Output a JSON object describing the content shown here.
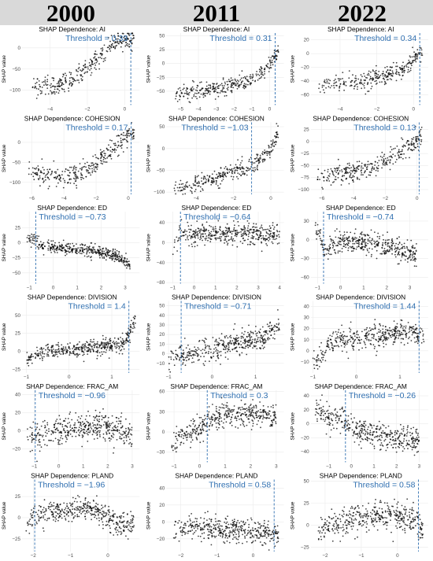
{
  "header": {
    "years": [
      "2000",
      "2011",
      "2022"
    ]
  },
  "colors": {
    "header_bg": "#d9d9d9",
    "point": "#000000",
    "threshold": "#2f6fb0",
    "grid": "#ebebeb"
  },
  "chart_data": [
    {
      "type": "scatter",
      "row": 0,
      "col": 0,
      "title": "SHAP Dependence: AI",
      "ylabel": "SHAP value",
      "threshold_label": "Threshold = 0.33",
      "threshold": 0.33,
      "xlim": [
        -5.5,
        0.8
      ],
      "ylim": [
        -135,
        35
      ],
      "xticks": [
        -4,
        -2,
        0
      ],
      "yticks": [
        -100,
        -50,
        0
      ],
      "trend": [
        [
          -5.0,
          -95
        ],
        [
          -4.3,
          -92
        ],
        [
          -3.5,
          -85
        ],
        [
          -2.8,
          -75
        ],
        [
          -2.3,
          -60
        ],
        [
          -1.8,
          -40
        ],
        [
          -1.3,
          -20
        ],
        [
          -0.8,
          5
        ],
        [
          -0.3,
          12
        ],
        [
          0.0,
          18
        ],
        [
          0.3,
          20
        ],
        [
          0.5,
          22
        ]
      ],
      "spread": 12,
      "n": 320
    },
    {
      "type": "scatter",
      "row": 0,
      "col": 1,
      "title": "SHAP Dependence: AI",
      "ylabel": "SHAP value",
      "threshold_label": "Threshold = 0.31",
      "threshold": 0.31,
      "xlim": [
        -5.8,
        0.8
      ],
      "ylim": [
        -75,
        55
      ],
      "xticks": [
        -5,
        -4,
        -3,
        -2,
        -1,
        0
      ],
      "yticks": [
        -50,
        -25,
        0,
        25,
        50
      ],
      "trend": [
        [
          -5.3,
          -55
        ],
        [
          -4.5,
          -50
        ],
        [
          -3.8,
          -48
        ],
        [
          -3.0,
          -45
        ],
        [
          -2.3,
          -40
        ],
        [
          -1.6,
          -35
        ],
        [
          -1.0,
          -28
        ],
        [
          -0.5,
          -18
        ],
        [
          -0.1,
          -5
        ],
        [
          0.2,
          10
        ],
        [
          0.5,
          25
        ]
      ],
      "spread": 7,
      "n": 320
    },
    {
      "type": "scatter",
      "row": 0,
      "col": 2,
      "title": "SHAP Dependence: AI",
      "ylabel": "SHAP value",
      "threshold_label": "Threshold = 0.34",
      "threshold": 0.34,
      "xlim": [
        -5.6,
        0.8
      ],
      "ylim": [
        -75,
        30
      ],
      "xticks": [
        -4,
        -2,
        0
      ],
      "yticks": [
        -60,
        -40,
        -20,
        0,
        20
      ],
      "trend": [
        [
          -5.2,
          -45
        ],
        [
          -4.5,
          -45
        ],
        [
          -3.8,
          -44
        ],
        [
          -3.0,
          -42
        ],
        [
          -2.3,
          -38
        ],
        [
          -1.6,
          -33
        ],
        [
          -1.0,
          -28
        ],
        [
          -0.5,
          -22
        ],
        [
          0.0,
          -10
        ],
        [
          0.3,
          0
        ],
        [
          0.5,
          5
        ]
      ],
      "spread": 6,
      "n": 300
    },
    {
      "type": "scatter",
      "row": 1,
      "col": 0,
      "title": "SHAP Dependence: COHESION",
      "ylabel": "SHAP value",
      "threshold_label": "Threshold = 0.17",
      "threshold": 0.17,
      "xlim": [
        -6.6,
        0.7
      ],
      "ylim": [
        -130,
        50
      ],
      "xticks": [
        -6,
        -4,
        -2,
        0
      ],
      "yticks": [
        -100,
        -50,
        0
      ],
      "trend": [
        [
          -6.2,
          -75
        ],
        [
          -5.2,
          -85
        ],
        [
          -4.2,
          -90
        ],
        [
          -3.2,
          -80
        ],
        [
          -2.2,
          -60
        ],
        [
          -1.6,
          -40
        ],
        [
          -1.0,
          -20
        ],
        [
          -0.5,
          0
        ],
        [
          -0.1,
          15
        ],
        [
          0.2,
          20
        ],
        [
          0.4,
          25
        ]
      ],
      "spread": 12,
      "n": 320
    },
    {
      "type": "scatter",
      "row": 1,
      "col": 1,
      "title": "SHAP Dependence: COHESION",
      "ylabel": "SHAP value",
      "threshold_label": "Threshold = −1.03",
      "threshold": -1.03,
      "xlim": [
        -5.6,
        0.7
      ],
      "ylim": [
        -105,
        60
      ],
      "xticks": [
        -4,
        -2,
        0
      ],
      "yticks": [
        -100,
        -50,
        0,
        50
      ],
      "trend": [
        [
          -5.2,
          -90
        ],
        [
          -4.3,
          -85
        ],
        [
          -3.5,
          -75
        ],
        [
          -2.7,
          -65
        ],
        [
          -2.0,
          -55
        ],
        [
          -1.3,
          -45
        ],
        [
          -0.8,
          -35
        ],
        [
          -0.4,
          -20
        ],
        [
          0.0,
          0
        ],
        [
          0.2,
          20
        ],
        [
          0.4,
          35
        ]
      ],
      "spread": 10,
      "n": 320
    },
    {
      "type": "scatter",
      "row": 1,
      "col": 2,
      "title": "SHAP Dependence: COHESION",
      "ylabel": "SHAP value",
      "threshold_label": "Threshold = 0.13",
      "threshold": 0.13,
      "xlim": [
        -6.7,
        0.7
      ],
      "ylim": [
        -110,
        40
      ],
      "xticks": [
        -6,
        -4,
        -2,
        0
      ],
      "yticks": [
        -100,
        -75,
        -50,
        -25,
        0,
        25
      ],
      "trend": [
        [
          -6.3,
          -80
        ],
        [
          -5.4,
          -70
        ],
        [
          -4.6,
          -65
        ],
        [
          -3.8,
          -60
        ],
        [
          -3.0,
          -55
        ],
        [
          -2.2,
          -45
        ],
        [
          -1.5,
          -30
        ],
        [
          -0.9,
          -18
        ],
        [
          -0.4,
          -8
        ],
        [
          0.0,
          5
        ],
        [
          0.3,
          10
        ]
      ],
      "spread": 10,
      "n": 320
    },
    {
      "type": "scatter",
      "row": 2,
      "col": 0,
      "title": "SHAP Dependence: ED",
      "ylabel": "SHAP value",
      "threshold_label": "Threshold = −0.73",
      "threshold": -0.73,
      "xlim": [
        -1.3,
        3.6
      ],
      "ylim": [
        -68,
        52
      ],
      "xticks": [
        -1,
        0,
        1,
        2,
        3
      ],
      "yticks": [
        -50,
        -25,
        0,
        25
      ],
      "trend": [
        [
          -1.1,
          8
        ],
        [
          -0.8,
          6
        ],
        [
          -0.5,
          -5
        ],
        [
          0.0,
          -8
        ],
        [
          0.7,
          -10
        ],
        [
          1.4,
          -12
        ],
        [
          2.0,
          -16
        ],
        [
          2.6,
          -22
        ],
        [
          3.2,
          -35
        ]
      ],
      "spread": 5,
      "n": 420
    },
    {
      "type": "scatter",
      "row": 2,
      "col": 1,
      "title": "SHAP Dependence: ED",
      "ylabel": "SHAP value",
      "threshold_label": "Threshold = −0.64",
      "threshold": -0.64,
      "xlim": [
        -1.3,
        4.2
      ],
      "ylim": [
        -82,
        62
      ],
      "xticks": [
        -1,
        0,
        1,
        2,
        3,
        4
      ],
      "yticks": [
        -80,
        -40,
        0,
        40
      ],
      "trend": [
        [
          -1.0,
          -15
        ],
        [
          -0.8,
          5
        ],
        [
          -0.6,
          20
        ],
        [
          -0.3,
          15
        ],
        [
          0.5,
          18
        ],
        [
          1.5,
          20
        ],
        [
          2.5,
          18
        ],
        [
          3.5,
          15
        ],
        [
          4.0,
          15
        ]
      ],
      "spread": 10,
      "n": 420
    },
    {
      "type": "scatter",
      "row": 2,
      "col": 2,
      "title": "SHAP Dependence: ED",
      "ylabel": "SHAP value",
      "threshold_label": "Threshold = −0.74",
      "threshold": -0.74,
      "xlim": [
        -1.3,
        3.8
      ],
      "ylim": [
        -70,
        45
      ],
      "xticks": [
        -1,
        0,
        1,
        2,
        3
      ],
      "yticks": [
        -60,
        -30,
        0,
        30
      ],
      "trend": [
        [
          -1.1,
          15
        ],
        [
          -0.9,
          10
        ],
        [
          -0.7,
          -20
        ],
        [
          -0.4,
          -5
        ],
        [
          0.3,
          -2
        ],
        [
          1.0,
          -5
        ],
        [
          1.8,
          -8
        ],
        [
          2.5,
          -15
        ],
        [
          3.3,
          -25
        ]
      ],
      "spread": 9,
      "n": 420
    },
    {
      "type": "scatter",
      "row": 3,
      "col": 0,
      "title": "SHAP Dependence: DIVISION",
      "ylabel": "SHAP value",
      "threshold_label": "Threshold = 1.4",
      "threshold": 1.4,
      "xlim": [
        -1.1,
        1.65
      ],
      "ylim": [
        -30,
        70
      ],
      "xticks": [
        -1,
        0,
        1
      ],
      "yticks": [
        -25,
        0,
        25,
        50
      ],
      "trend": [
        [
          -1.0,
          -15
        ],
        [
          -0.8,
          -5
        ],
        [
          -0.4,
          0
        ],
        [
          0.0,
          2
        ],
        [
          0.5,
          5
        ],
        [
          1.0,
          8
        ],
        [
          1.3,
          12
        ],
        [
          1.45,
          30
        ],
        [
          1.55,
          45
        ]
      ],
      "spread": 5,
      "n": 420
    },
    {
      "type": "scatter",
      "row": 3,
      "col": 1,
      "title": "SHAP Dependence: DIVISION",
      "ylabel": "SHAP value",
      "threshold_label": "Threshold = −0.71",
      "threshold": -0.71,
      "xlim": [
        -1.05,
        1.65
      ],
      "ylim": [
        -20,
        55
      ],
      "xticks": [
        -1,
        0,
        1
      ],
      "yticks": [
        -10,
        0,
        10,
        20,
        30,
        40,
        50
      ],
      "trend": [
        [
          -1.0,
          -5
        ],
        [
          -0.7,
          0
        ],
        [
          -0.3,
          3
        ],
        [
          0.0,
          5
        ],
        [
          0.3,
          8
        ],
        [
          0.7,
          12
        ],
        [
          1.0,
          15
        ],
        [
          1.3,
          20
        ],
        [
          1.55,
          30
        ]
      ],
      "spread": 6,
      "n": 420
    },
    {
      "type": "scatter",
      "row": 3,
      "col": 2,
      "title": "SHAP Dependence: DIVISION",
      "ylabel": "SHAP value",
      "threshold_label": "Threshold = 1.44",
      "threshold": 1.44,
      "xlim": [
        -1.05,
        1.65
      ],
      "ylim": [
        -20,
        45
      ],
      "xticks": [
        -1,
        0,
        1
      ],
      "yticks": [
        -10,
        0,
        10,
        20,
        30,
        40
      ],
      "trend": [
        [
          -1.0,
          -12
        ],
        [
          -0.85,
          -8
        ],
        [
          -0.6,
          8
        ],
        [
          -0.2,
          10
        ],
        [
          0.3,
          12
        ],
        [
          0.8,
          15
        ],
        [
          1.2,
          18
        ],
        [
          1.45,
          15
        ],
        [
          1.55,
          10
        ]
      ],
      "spread": 5,
      "n": 420
    },
    {
      "type": "scatter",
      "row": 4,
      "col": 0,
      "title": "SHAP Dependence: FRAC_AM",
      "ylabel": "SHAP value",
      "threshold_label": "Threshold = −0.96",
      "threshold": -0.96,
      "xlim": [
        -1.5,
        3.3
      ],
      "ylim": [
        -35,
        45
      ],
      "xticks": [
        -1,
        0,
        1,
        2,
        3
      ],
      "yticks": [
        -20,
        0,
        20,
        40
      ],
      "trend": [
        [
          -1.3,
          -8
        ],
        [
          -1.0,
          -5
        ],
        [
          -0.5,
          -5
        ],
        [
          0.0,
          0
        ],
        [
          0.5,
          2
        ],
        [
          1.0,
          5
        ],
        [
          1.5,
          5
        ],
        [
          2.0,
          5
        ],
        [
          2.5,
          0
        ],
        [
          3.0,
          -5
        ]
      ],
      "spread": 8,
      "n": 420
    },
    {
      "type": "scatter",
      "row": 4,
      "col": 1,
      "title": "SHAP Dependence: FRAC_AM",
      "ylabel": "SHAP value",
      "threshold_label": "Threshold = 0.3",
      "threshold": 0.3,
      "xlim": [
        -1.3,
        3.3
      ],
      "ylim": [
        -45,
        62
      ],
      "xticks": [
        -1,
        0,
        1,
        2,
        3
      ],
      "yticks": [
        -30,
        0,
        30,
        60
      ],
      "trend": [
        [
          -1.1,
          -20
        ],
        [
          -0.8,
          -10
        ],
        [
          -0.5,
          -5
        ],
        [
          0.0,
          5
        ],
        [
          0.3,
          15
        ],
        [
          0.8,
          25
        ],
        [
          1.5,
          28
        ],
        [
          2.2,
          28
        ],
        [
          3.0,
          20
        ]
      ],
      "spread": 9,
      "n": 420
    },
    {
      "type": "scatter",
      "row": 4,
      "col": 2,
      "title": "SHAP Dependence: FRAC_AM",
      "ylabel": "SHAP value",
      "threshold_label": "Threshold = −0.26",
      "threshold": -0.26,
      "xlim": [
        -1.8,
        3.4
      ],
      "ylim": [
        -55,
        48
      ],
      "xticks": [
        -1,
        0,
        1,
        2,
        3
      ],
      "yticks": [
        -40,
        -20,
        0,
        20,
        40
      ],
      "trend": [
        [
          -1.6,
          25
        ],
        [
          -1.2,
          15
        ],
        [
          -0.8,
          5
        ],
        [
          -0.4,
          5
        ],
        [
          0.0,
          -5
        ],
        [
          0.5,
          -10
        ],
        [
          1.0,
          -15
        ],
        [
          1.5,
          -18
        ],
        [
          2.2,
          -20
        ],
        [
          3.0,
          -25
        ]
      ],
      "spread": 9,
      "n": 420
    },
    {
      "type": "scatter",
      "row": 5,
      "col": 0,
      "title": "SHAP Dependence: PLAND",
      "ylabel": "SHAP value",
      "threshold_label": "Threshold = −1.96",
      "threshold": -1.96,
      "xlim": [
        -2.3,
        0.85
      ],
      "ylim": [
        -40,
        45
      ],
      "xticks": [
        -2,
        -1,
        0
      ],
      "yticks": [
        -25,
        0,
        25
      ],
      "trend": [
        [
          -2.2,
          -15
        ],
        [
          -2.0,
          0
        ],
        [
          -1.7,
          5
        ],
        [
          -1.3,
          8
        ],
        [
          -0.9,
          10
        ],
        [
          -0.5,
          12
        ],
        [
          -0.2,
          5
        ],
        [
          0.2,
          -5
        ],
        [
          0.5,
          -10
        ],
        [
          0.7,
          -8
        ]
      ],
      "spread": 7,
      "n": 420
    },
    {
      "type": "scatter",
      "row": 5,
      "col": 1,
      "title": "SHAP Dependence: PLAND",
      "ylabel": "SHAP value",
      "threshold_label": "Threshold = 0.58",
      "threshold": 0.58,
      "xlim": [
        -2.4,
        0.85
      ],
      "ylim": [
        -35,
        50
      ],
      "xticks": [
        -2,
        -1,
        0
      ],
      "yticks": [
        -20,
        0,
        20,
        40
      ],
      "trend": [
        [
          -2.2,
          -10
        ],
        [
          -1.8,
          -8
        ],
        [
          -1.4,
          -8
        ],
        [
          -1.0,
          -10
        ],
        [
          -0.6,
          -10
        ],
        [
          -0.2,
          -12
        ],
        [
          0.2,
          -12
        ],
        [
          0.5,
          -15
        ],
        [
          0.7,
          -15
        ]
      ],
      "spread": 7,
      "n": 420
    },
    {
      "type": "scatter",
      "row": 5,
      "col": 2,
      "title": "SHAP Dependence: PLAND",
      "ylabel": "SHAP value",
      "threshold_label": "Threshold = 0.58",
      "threshold": 0.58,
      "xlim": [
        -2.4,
        0.85
      ],
      "ylim": [
        -30,
        52
      ],
      "xticks": [
        -2,
        -1,
        0
      ],
      "yticks": [
        -25,
        0,
        25,
        50
      ],
      "trend": [
        [
          -2.2,
          -5
        ],
        [
          -1.8,
          0
        ],
        [
          -1.4,
          5
        ],
        [
          -1.0,
          8
        ],
        [
          -0.6,
          12
        ],
        [
          -0.2,
          10
        ],
        [
          0.2,
          8
        ],
        [
          0.5,
          5
        ],
        [
          0.7,
          -10
        ]
      ],
      "spread": 8,
      "n": 420
    }
  ]
}
